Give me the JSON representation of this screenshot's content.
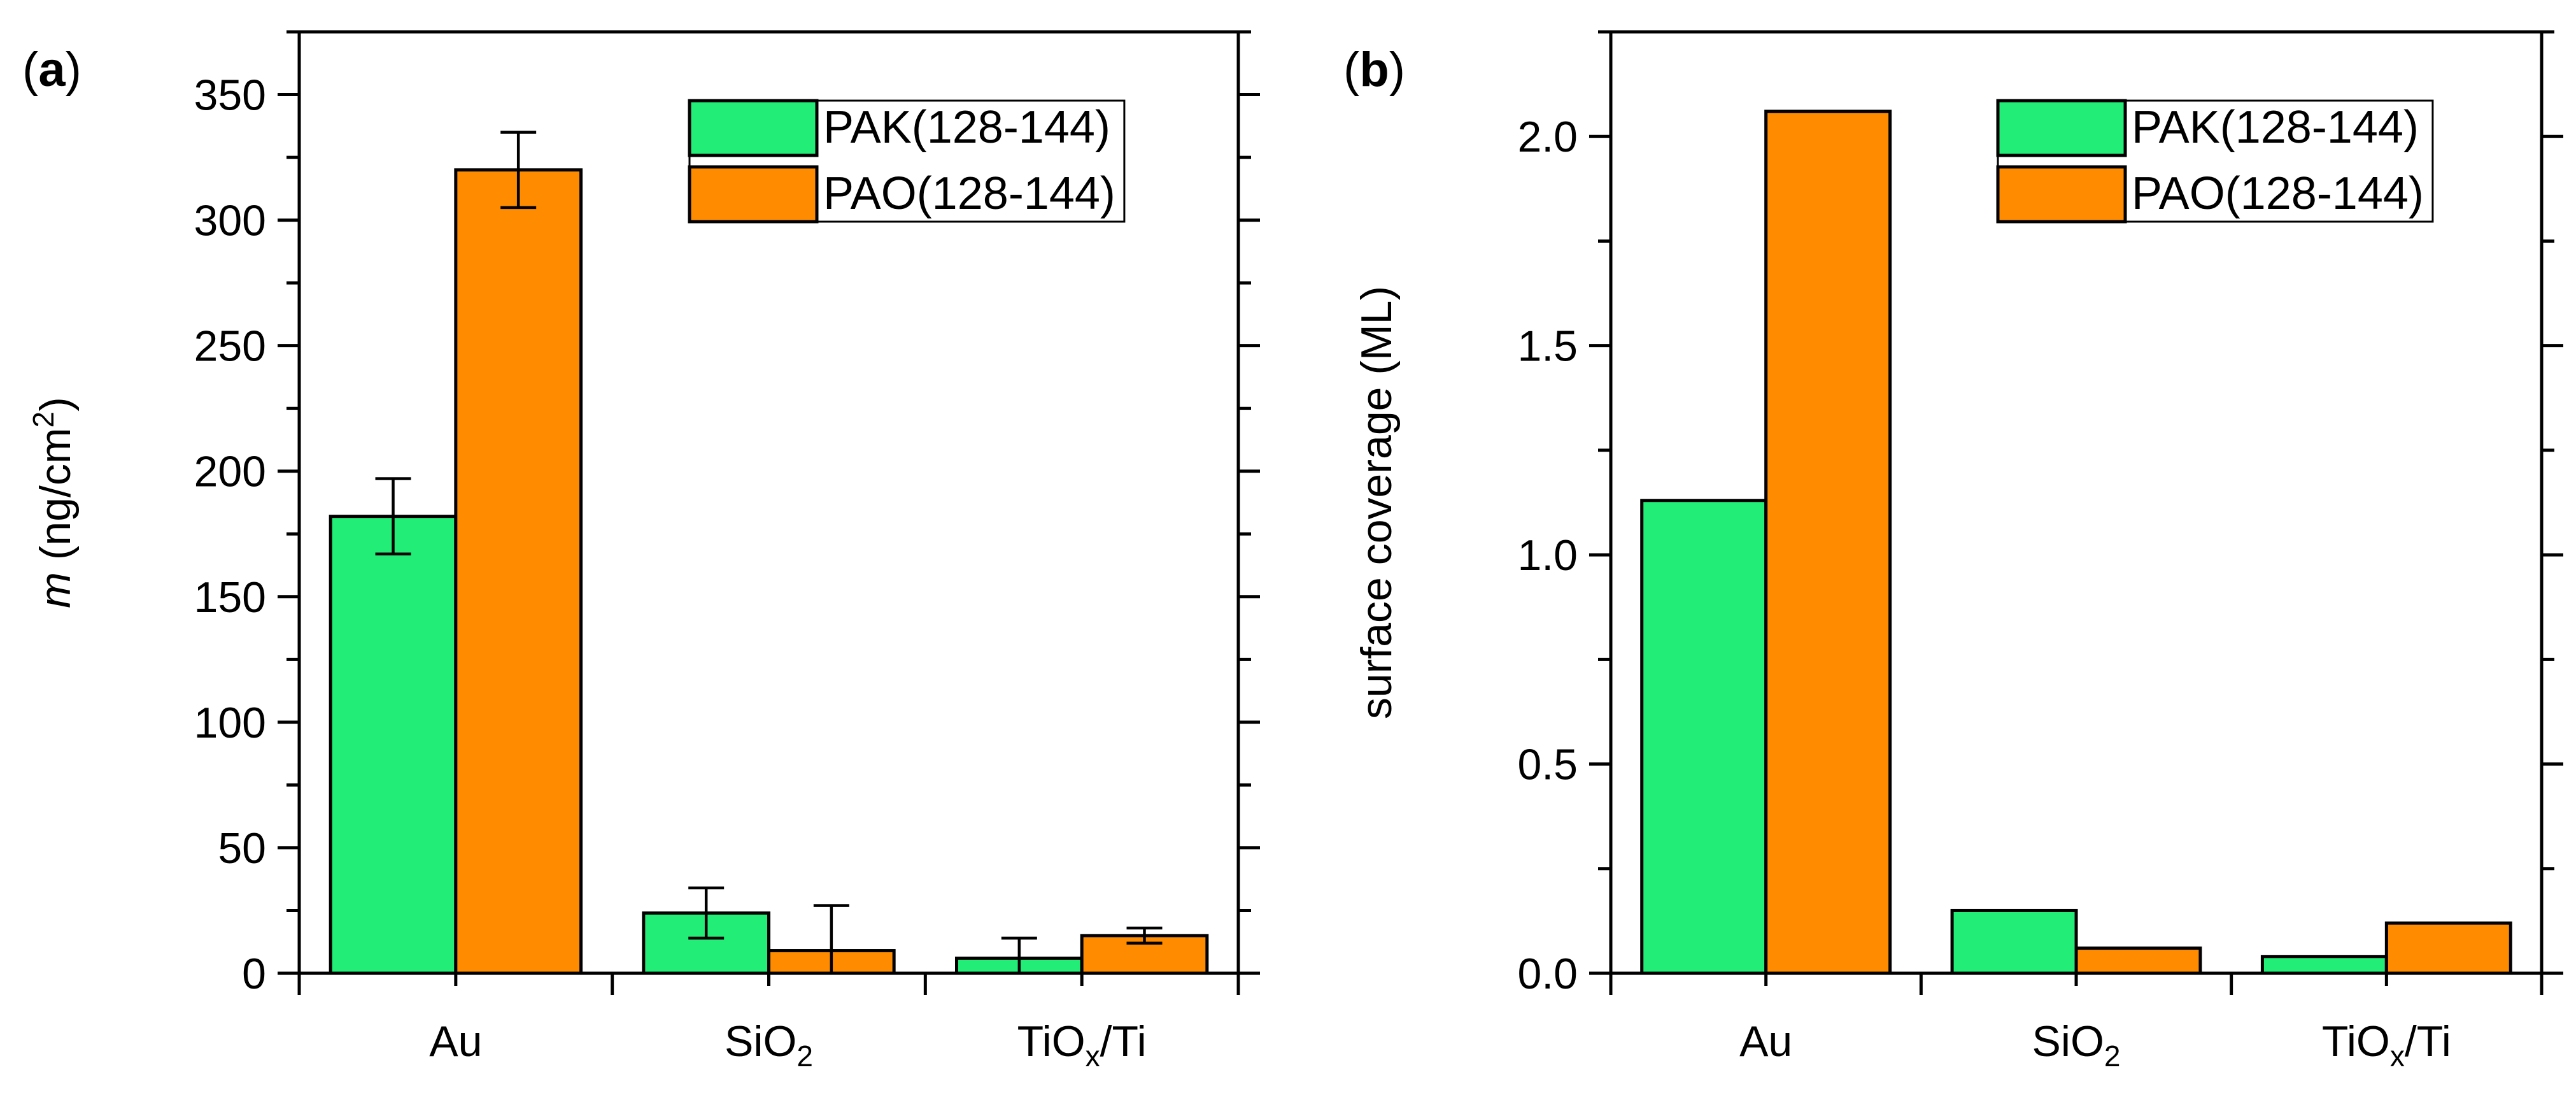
{
  "colors": {
    "pak": "#22ee77",
    "pao": "#ff8c00",
    "axis": "#000000"
  },
  "chart_data": [
    {
      "type": "bar",
      "panel_label": "a",
      "ylabel_italic": "m",
      "ylabel_unit_start": " (ng/cm",
      "ylabel_sup": "2",
      "ylabel_unit_end": ")",
      "categories": [
        {
          "main": "Au",
          "sub": "",
          "rest": ""
        },
        {
          "main": "SiO",
          "sub": "2",
          "rest": ""
        },
        {
          "main": "TiO",
          "sub": "x",
          "rest": "/Ti"
        }
      ],
      "series": [
        {
          "name": "PAK(128-144)",
          "color_key": "pak",
          "values": [
            182,
            24,
            6
          ],
          "errors": [
            15,
            10,
            8
          ]
        },
        {
          "name": "PAO(128-144)",
          "color_key": "pao",
          "values": [
            320,
            9,
            15
          ],
          "errors": [
            15,
            18,
            3
          ]
        }
      ],
      "ylim": [
        0,
        375
      ],
      "ymajor": 50,
      "yticks": [
        "0",
        "50",
        "100",
        "150",
        "200",
        "250",
        "300",
        "350"
      ],
      "legend": "top-right"
    },
    {
      "type": "bar",
      "panel_label": "b",
      "ylabel_text": "surface coverage (ML)",
      "categories": [
        {
          "main": "Au",
          "sub": "",
          "rest": ""
        },
        {
          "main": "SiO",
          "sub": "2",
          "rest": ""
        },
        {
          "main": "TiO",
          "sub": "x",
          "rest": "/Ti"
        }
      ],
      "series": [
        {
          "name": "PAK(128-144)",
          "color_key": "pak",
          "values": [
            1.13,
            0.15,
            0.04
          ]
        },
        {
          "name": "PAO(128-144)",
          "color_key": "pao",
          "values": [
            2.06,
            0.06,
            0.12
          ]
        }
      ],
      "ylim": [
        0,
        2.25
      ],
      "ymajor": 0.5,
      "yticks": [
        "0.0",
        "0.5",
        "1.0",
        "1.5",
        "2.0"
      ],
      "legend": "top-right"
    }
  ]
}
